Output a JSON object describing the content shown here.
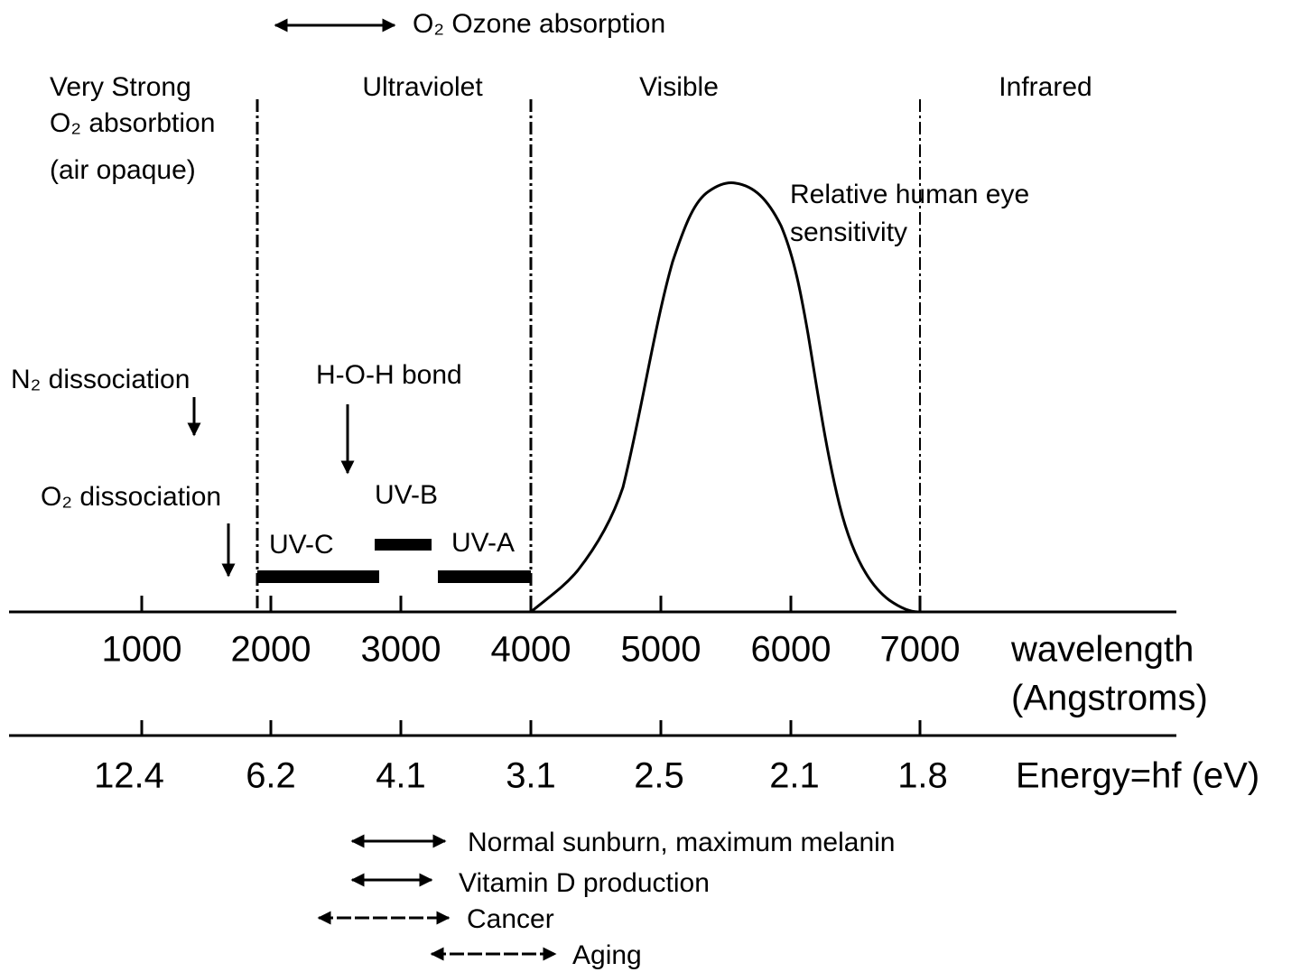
{
  "top_note": "O₂ Ozone absorption",
  "regions": {
    "far_uv": [
      "Very Strong",
      "O₂ absorbtion",
      "(air opaque)"
    ],
    "ultraviolet": "Ultraviolet",
    "visible": "Visible",
    "infrared": "Infrared"
  },
  "eye_curve": [
    "Relative human eye",
    "sensitivity"
  ],
  "markers": {
    "n2": "N₂ dissociation",
    "hoh": "H-O-H bond",
    "o2": "O₂ dissociation"
  },
  "bands": {
    "uvc": "UV-C",
    "uvb": "UV-B",
    "uva": "UV-A"
  },
  "wavelength_axis": {
    "ticks": [
      "1000",
      "2000",
      "3000",
      "4000",
      "5000",
      "6000",
      "7000"
    ],
    "label": [
      "wavelength",
      "(Angstroms)"
    ]
  },
  "energy_axis": {
    "ticks": [
      "12.4",
      "6.2",
      "4.1",
      "3.1",
      "2.5",
      "2.1",
      "1.8"
    ],
    "label": "Energy=hf (eV)"
  },
  "effects": [
    "Normal sunburn, maximum melanin",
    "Vitamin D production",
    "Cancer",
    "Aging"
  ]
}
